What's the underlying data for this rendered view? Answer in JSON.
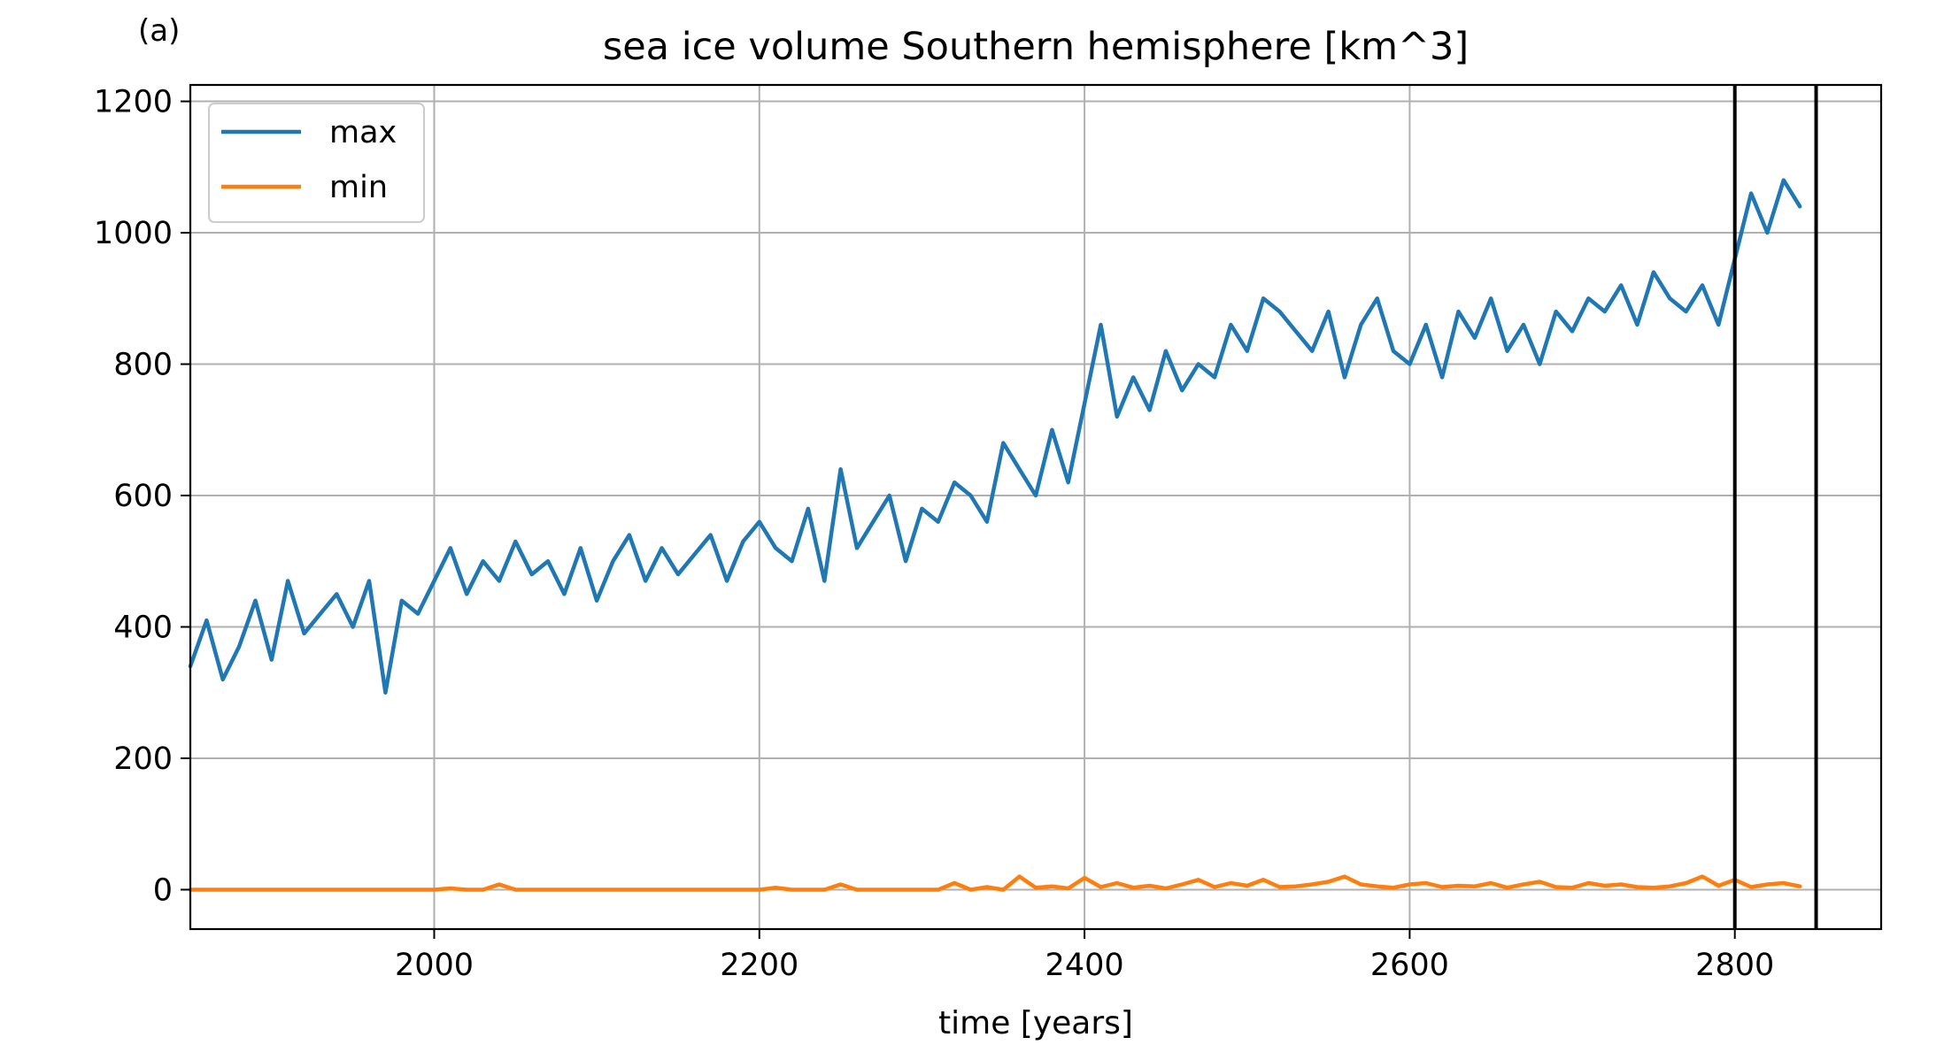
{
  "chart_data": {
    "type": "line",
    "panel_label": "(a)",
    "title": "sea ice volume Southern hemisphere [km^3]",
    "xlabel": "time [years]",
    "ylabel": "",
    "xlim": [
      1850,
      2890
    ],
    "ylim": [
      -60,
      1225
    ],
    "xticks": [
      2000,
      2200,
      2400,
      2600,
      2800
    ],
    "yticks": [
      0,
      200,
      400,
      600,
      800,
      1000,
      1200
    ],
    "grid": true,
    "legend_position": "top-left",
    "vertical_lines": [
      2800,
      2850
    ],
    "series": [
      {
        "name": "max",
        "color": "#1f77b4",
        "x": [
          1850,
          1860,
          1870,
          1880,
          1890,
          1900,
          1910,
          1920,
          1930,
          1940,
          1950,
          1960,
          1970,
          1980,
          1990,
          2000,
          2010,
          2020,
          2030,
          2040,
          2050,
          2060,
          2070,
          2080,
          2090,
          2100,
          2110,
          2120,
          2130,
          2140,
          2150,
          2160,
          2170,
          2180,
          2190,
          2200,
          2210,
          2220,
          2230,
          2240,
          2250,
          2260,
          2270,
          2280,
          2290,
          2300,
          2310,
          2320,
          2330,
          2340,
          2350,
          2360,
          2370,
          2380,
          2390,
          2400,
          2410,
          2420,
          2430,
          2440,
          2450,
          2460,
          2470,
          2480,
          2490,
          2500,
          2510,
          2520,
          2530,
          2540,
          2550,
          2560,
          2570,
          2580,
          2590,
          2600,
          2610,
          2620,
          2630,
          2640,
          2650,
          2660,
          2670,
          2680,
          2690,
          2700,
          2710,
          2720,
          2730,
          2740,
          2750,
          2760,
          2770,
          2780,
          2790,
          2800,
          2810,
          2820,
          2830,
          2840
        ],
        "values": [
          340,
          410,
          320,
          370,
          440,
          350,
          470,
          390,
          420,
          450,
          400,
          470,
          300,
          440,
          420,
          470,
          520,
          450,
          500,
          470,
          530,
          480,
          500,
          450,
          520,
          440,
          500,
          540,
          470,
          520,
          480,
          510,
          540,
          470,
          530,
          560,
          520,
          500,
          580,
          470,
          640,
          520,
          560,
          600,
          500,
          580,
          560,
          620,
          600,
          560,
          680,
          640,
          600,
          700,
          620,
          740,
          860,
          720,
          780,
          730,
          820,
          760,
          800,
          780,
          860,
          820,
          900,
          880,
          850,
          820,
          880,
          780,
          860,
          900,
          820,
          800,
          860,
          780,
          880,
          840,
          900,
          820,
          860,
          800,
          880,
          850,
          900,
          880,
          920,
          860,
          940,
          900,
          880,
          920,
          860,
          960,
          1060,
          1000,
          1080,
          1040
        ]
      },
      {
        "name": "min",
        "color": "#ff7f0e",
        "x": [
          1850,
          1860,
          1870,
          1880,
          1890,
          1900,
          1910,
          1920,
          1930,
          1940,
          1950,
          1960,
          1970,
          1980,
          1990,
          2000,
          2010,
          2020,
          2030,
          2040,
          2050,
          2060,
          2070,
          2080,
          2090,
          2100,
          2110,
          2120,
          2130,
          2140,
          2150,
          2160,
          2170,
          2180,
          2190,
          2200,
          2210,
          2220,
          2230,
          2240,
          2250,
          2260,
          2270,
          2280,
          2290,
          2300,
          2310,
          2320,
          2330,
          2340,
          2350,
          2360,
          2370,
          2380,
          2390,
          2400,
          2410,
          2420,
          2430,
          2440,
          2450,
          2460,
          2470,
          2480,
          2490,
          2500,
          2510,
          2520,
          2530,
          2540,
          2550,
          2560,
          2570,
          2580,
          2590,
          2600,
          2610,
          2620,
          2630,
          2640,
          2650,
          2660,
          2670,
          2680,
          2690,
          2700,
          2710,
          2720,
          2730,
          2740,
          2750,
          2760,
          2770,
          2780,
          2790,
          2800,
          2810,
          2820,
          2830,
          2840
        ],
        "values": [
          0,
          0,
          0,
          0,
          0,
          0,
          0,
          0,
          0,
          0,
          0,
          0,
          0,
          0,
          0,
          0,
          2,
          0,
          0,
          8,
          0,
          0,
          0,
          0,
          0,
          0,
          0,
          0,
          0,
          0,
          0,
          0,
          0,
          0,
          0,
          0,
          3,
          0,
          0,
          0,
          8,
          0,
          0,
          0,
          0,
          0,
          0,
          10,
          0,
          4,
          0,
          20,
          3,
          5,
          2,
          18,
          4,
          10,
          3,
          6,
          2,
          8,
          15,
          4,
          10,
          6,
          15,
          4,
          5,
          8,
          12,
          20,
          8,
          5,
          3,
          8,
          10,
          4,
          6,
          5,
          10,
          3,
          8,
          12,
          4,
          3,
          10,
          6,
          8,
          4,
          3,
          5,
          10,
          20,
          6,
          15,
          4,
          8,
          10,
          5
        ]
      }
    ]
  }
}
